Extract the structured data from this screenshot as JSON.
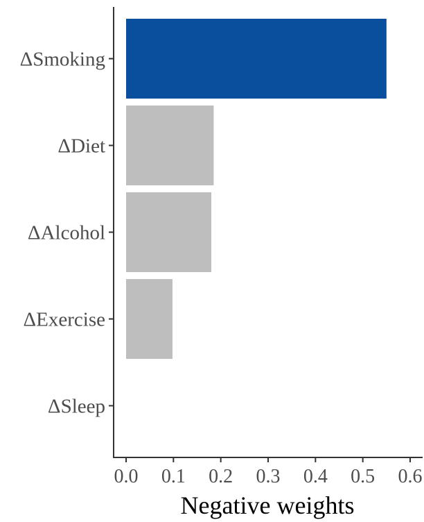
{
  "chart_data": {
    "type": "bar",
    "orientation": "horizontal",
    "categories": [
      "ΔSmoking",
      "ΔDiet",
      "ΔAlcohol",
      "ΔExercise",
      "ΔSleep"
    ],
    "values": [
      0.55,
      0.185,
      0.18,
      0.098,
      0.0
    ],
    "highlight_index": 0,
    "colors": {
      "highlight": "#0a4f9e",
      "default": "#bebebe",
      "axis": "#333333",
      "tick_text": "#4d4d4d"
    },
    "xlabel": "Negative weights",
    "ylabel": "",
    "xlim": [
      0.0,
      0.6
    ],
    "x_ticks": [
      "0.0",
      "0.1",
      "0.2",
      "0.3",
      "0.4",
      "0.5",
      "0.6"
    ],
    "grid": false,
    "legend": "none"
  }
}
